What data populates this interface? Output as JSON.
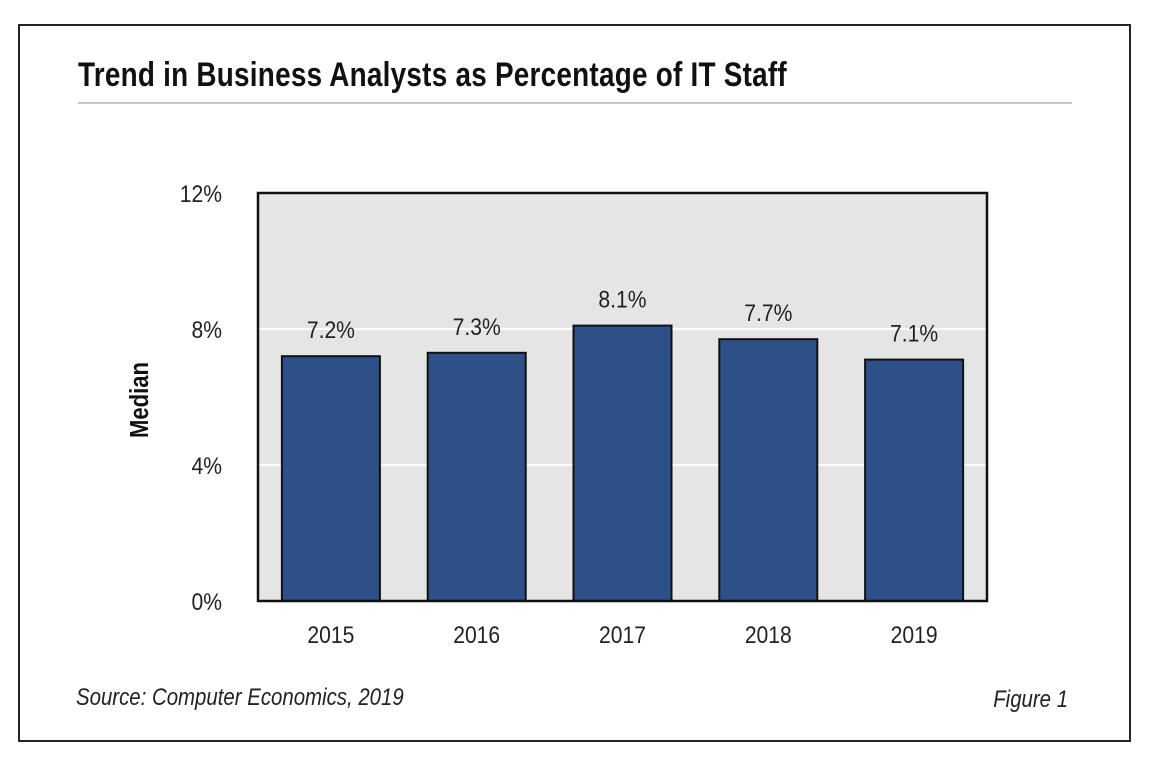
{
  "chart_data": {
    "type": "bar",
    "title": "Trend in Business Analysts as Percentage of IT Staff",
    "categories": [
      "2015",
      "2016",
      "2017",
      "2018",
      "2019"
    ],
    "values": [
      7.2,
      7.3,
      8.1,
      7.7,
      7.1
    ],
    "data_labels": [
      "7.2%",
      "7.3%",
      "8.1%",
      "7.7%",
      "7.1%"
    ],
    "xlabel": "",
    "ylabel": "Median",
    "ylim": [
      0,
      12
    ],
    "yticks": [
      0,
      4,
      8,
      12
    ],
    "ytick_labels": [
      "0%",
      "4%",
      "8%",
      "12%"
    ],
    "grid": true,
    "bar_color": "#2e5088",
    "plot_background": "#e5e5e5",
    "source": "Source: Computer Economics, 2019",
    "figure_label": "Figure 1"
  }
}
